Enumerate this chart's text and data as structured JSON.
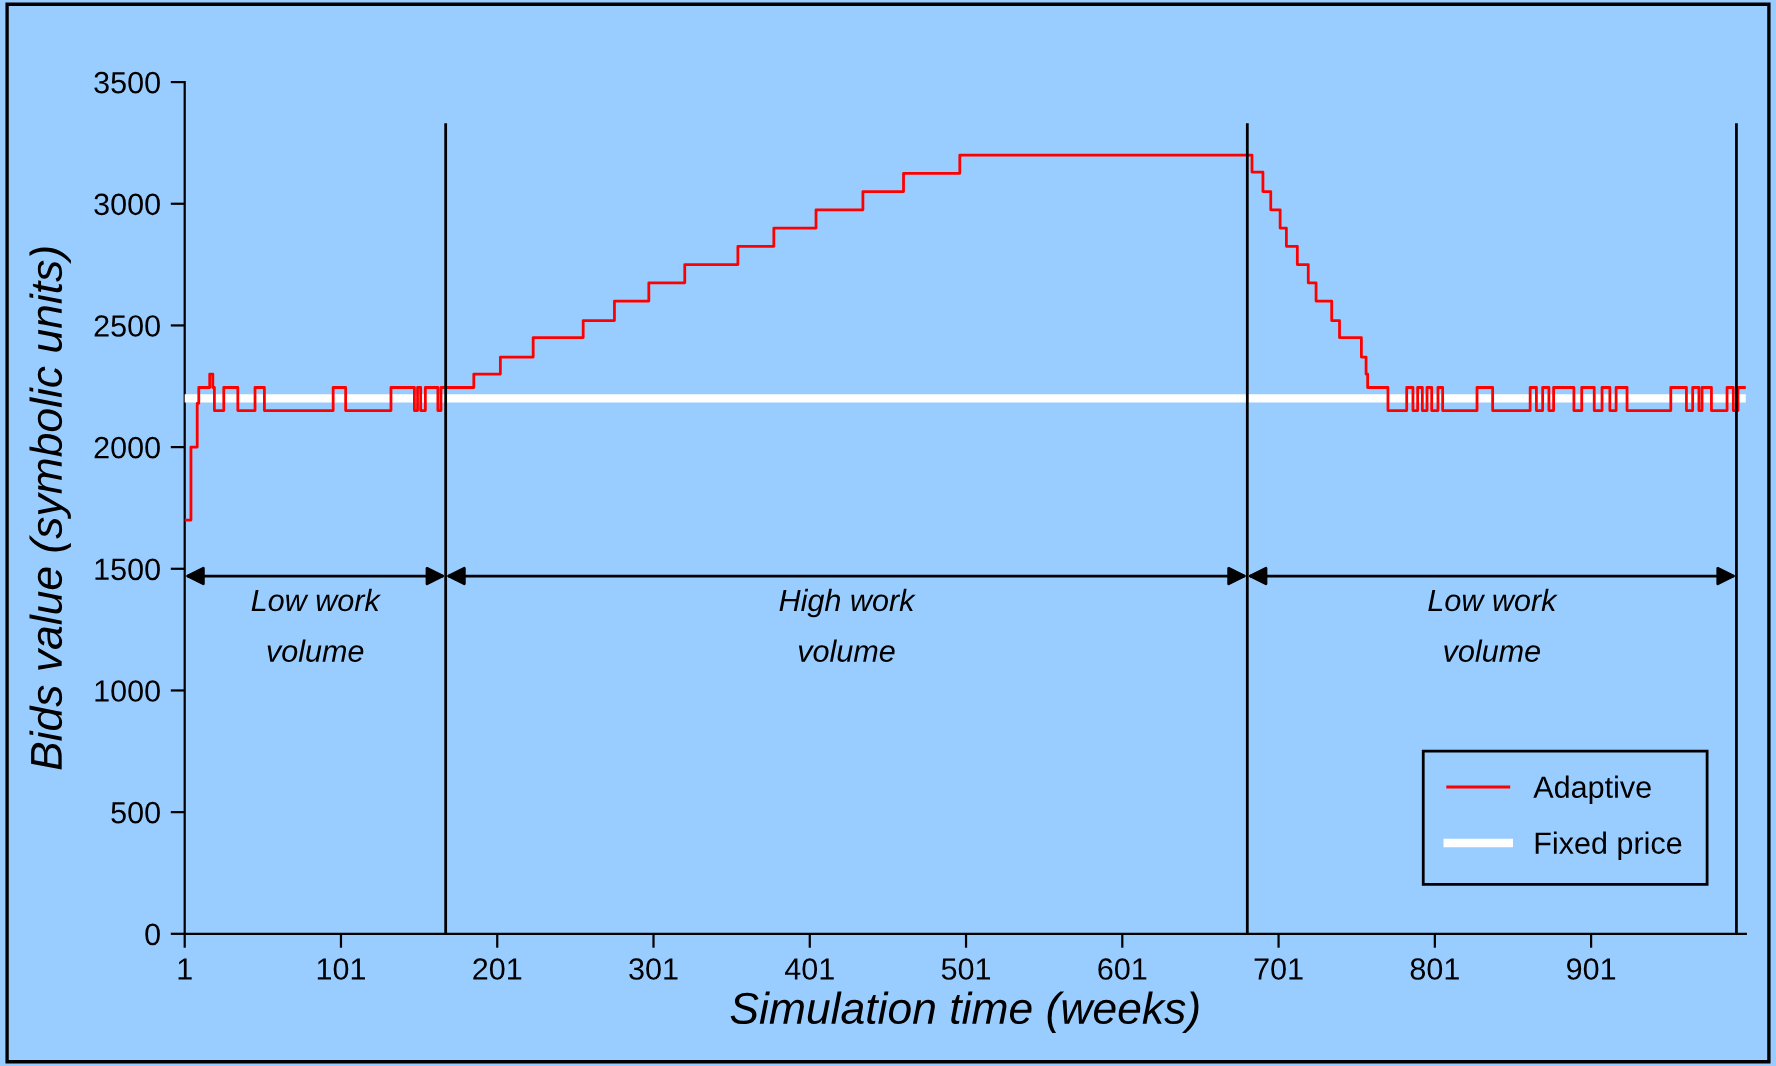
{
  "chart_data": {
    "type": "step",
    "xlabel": "Simulation time (weeks)",
    "ylabel": "Bids value (symbolic units)",
    "xlim": [
      1,
      1000
    ],
    "xticks": [
      1,
      101,
      201,
      301,
      401,
      501,
      601,
      701,
      801,
      901
    ],
    "ylim": [
      0,
      3500
    ],
    "yticks": [
      0,
      500,
      1000,
      1500,
      2000,
      2500,
      3000,
      3500
    ],
    "grid": false,
    "legend": "bottom right",
    "series": [
      {
        "name": "Adaptive",
        "color": "#ff0000",
        "x": [
          1,
          5,
          9,
          10,
          17,
          19,
          20,
          26,
          35,
          46,
          52,
          96,
          104,
          133,
          148,
          150,
          152,
          155,
          163,
          165,
          168,
          186,
          203,
          224,
          256,
          276,
          298,
          321,
          355,
          378,
          405,
          435,
          461,
          497,
          684,
          691,
          696,
          702,
          706,
          713,
          720,
          725,
          735,
          740,
          754,
          757,
          758,
          771,
          783,
          787,
          790,
          793,
          796,
          799,
          803,
          806,
          828,
          838,
          862,
          866,
          870,
          874,
          877,
          890,
          895,
          903,
          908,
          913,
          917,
          924,
          952,
          962,
          966,
          970,
          972,
          978,
          988,
          992,
          995,
          1000
        ],
        "values": [
          1700,
          2000,
          2180,
          2245,
          2300,
          2245,
          2150,
          2245,
          2150,
          2245,
          2150,
          2245,
          2150,
          2245,
          2150,
          2245,
          2150,
          2245,
          2150,
          2245,
          2245,
          2300,
          2370,
          2450,
          2520,
          2600,
          2675,
          2750,
          2825,
          2900,
          2975,
          3050,
          3125,
          3200,
          3130,
          3050,
          2975,
          2900,
          2825,
          2750,
          2675,
          2600,
          2520,
          2450,
          2370,
          2300,
          2245,
          2150,
          2245,
          2150,
          2245,
          2150,
          2245,
          2150,
          2245,
          2150,
          2245,
          2150,
          2245,
          2150,
          2245,
          2150,
          2245,
          2150,
          2245,
          2150,
          2245,
          2150,
          2245,
          2150,
          2245,
          2150,
          2245,
          2150,
          2245,
          2150,
          2245,
          2150,
          2245,
          2245
        ]
      },
      {
        "name": "Fixed price",
        "color": "#ffffff",
        "type": "line",
        "x": [
          1,
          1000
        ],
        "values": [
          2200,
          2200
        ]
      }
    ],
    "ref_lines": [
      {
        "axis": "x",
        "value": 168,
        "color": "#000000"
      },
      {
        "axis": "x",
        "value": 681,
        "color": "#000000"
      },
      {
        "axis": "x",
        "value": 994,
        "color": "#000000"
      }
    ],
    "annotations": [
      "Low work\nvolume",
      "High work\nvolume",
      "Low work\nvolume"
    ]
  }
}
